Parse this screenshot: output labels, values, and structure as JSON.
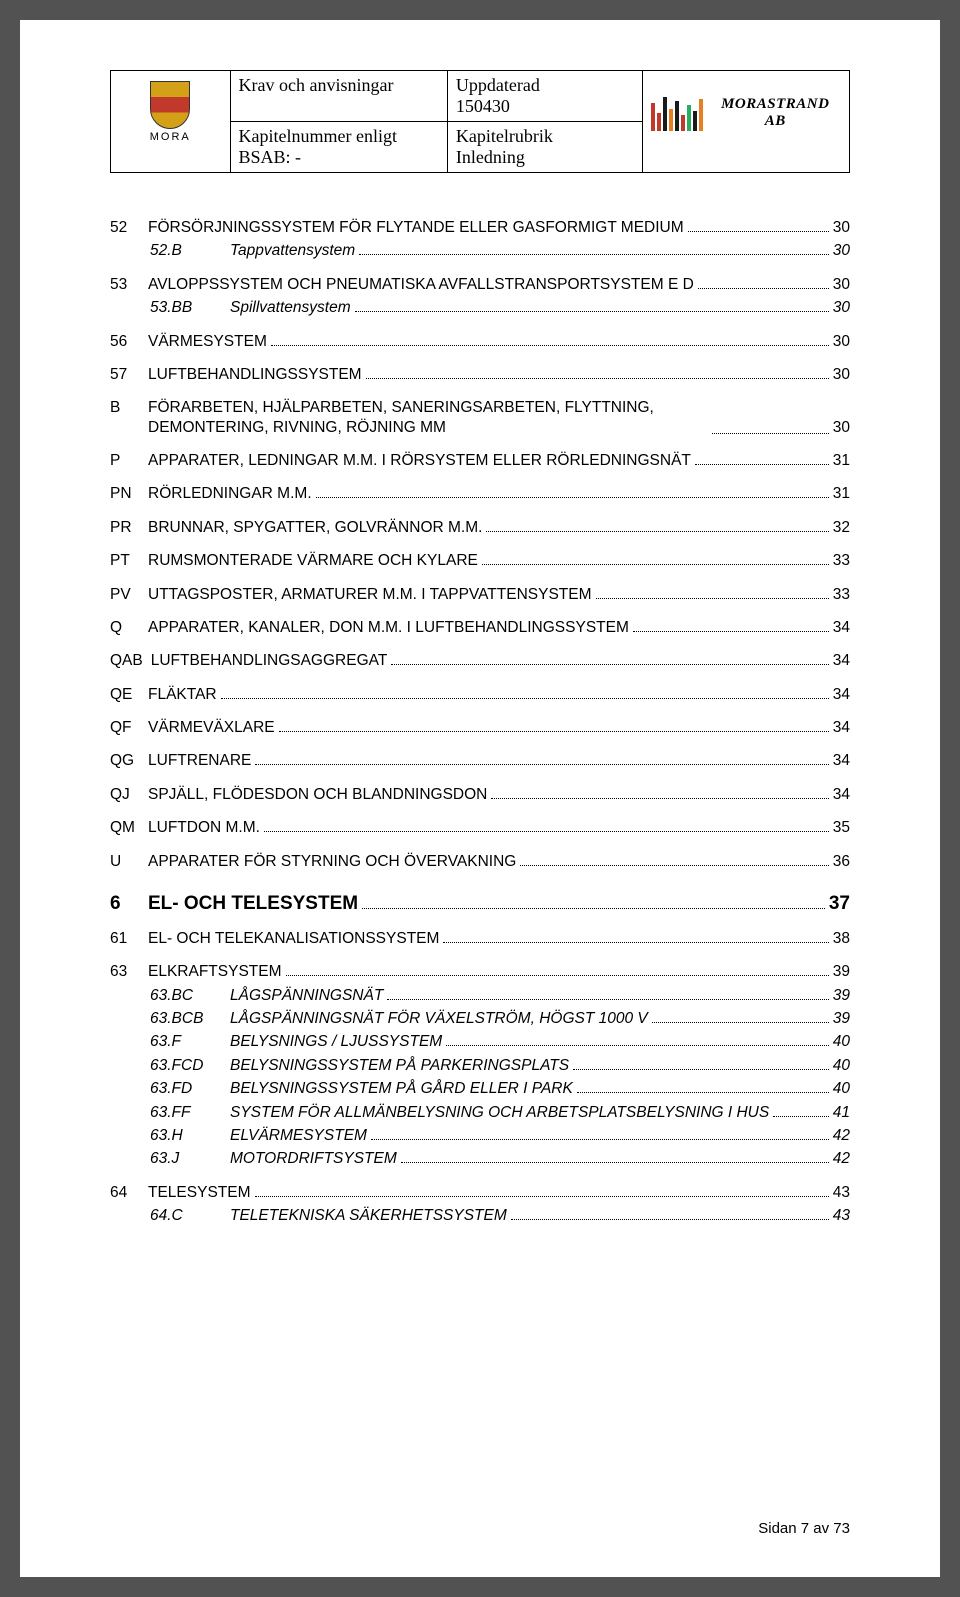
{
  "header": {
    "cell_a1": "Krav och anvisningar",
    "cell_b1": "Uppdaterad\n150430",
    "cell_a2": "Kapitelnummer enligt BSAB: -",
    "cell_b2": "Kapitelrubrik\nInledning",
    "mora_label": "MORA",
    "strand_label": "MORASTRAND AB",
    "strand_colors": [
      "#c0392b",
      "#c0392b",
      "#1a1a1a",
      "#e67e22",
      "#1a1a1a",
      "#c0392b",
      "#27ae60",
      "#1a1a1a",
      "#e67e22"
    ],
    "strand_heights": [
      28,
      18,
      34,
      22,
      30,
      16,
      26,
      20,
      32
    ]
  },
  "toc": [
    {
      "code": "52",
      "label": "FÖRSÖRJNINGSSYSTEM FÖR FLYTANDE ELLER GASFORMIGT MEDIUM",
      "page": "30",
      "gap": false
    },
    {
      "code": "52.B",
      "label": "Tappvattensystem",
      "page": "30",
      "indent": 1,
      "italic": true
    },
    {
      "code": "53",
      "label": "AVLOPPSSYSTEM OCH PNEUMATISKA AVFALLSTRANSPORTSYSTEM E D",
      "page": "30",
      "gap": true
    },
    {
      "code": "53.BB",
      "label": "Spillvattensystem",
      "page": "30",
      "indent": 1,
      "italic": true
    },
    {
      "code": "56",
      "label": "VÄRMESYSTEM",
      "page": "30",
      "gap": true
    },
    {
      "code": "57",
      "label": "LUFTBEHANDLINGSSYSTEM",
      "page": "30",
      "gap": true
    },
    {
      "code": "B",
      "label": "FÖRARBETEN, HJÄLPARBETEN, SANERINGSARBETEN, FLYTTNING, DEMONTERING, RIVNING, RÖJNING MM",
      "page": "30",
      "gap": true,
      "wrap": true
    },
    {
      "code": "P",
      "label": "APPARATER, LEDNINGAR M.M. I RÖRSYSTEM ELLER RÖRLEDNINGSNÄT",
      "page": "31",
      "gap": true
    },
    {
      "code": "PN",
      "label": "RÖRLEDNINGAR M.M.",
      "page": "31",
      "gap": true
    },
    {
      "code": "PR",
      "label": "BRUNNAR, SPYGATTER, GOLVRÄNNOR M.M.",
      "page": "32",
      "gap": true
    },
    {
      "code": "PT",
      "label": "RUMSMONTERADE VÄRMARE OCH KYLARE",
      "page": "33",
      "gap": true
    },
    {
      "code": "PV",
      "label": "UTTAGSPOSTER, ARMATURER M.M. I TAPPVATTENSYSTEM",
      "page": "33",
      "gap": true
    },
    {
      "code": "Q",
      "label": "APPARATER, KANALER, DON M.M. I LUFTBEHANDLINGSSYSTEM",
      "page": "34",
      "gap": true
    },
    {
      "code": "QAB",
      "label": "LUFTBEHANDLINGSAGGREGAT",
      "page": "34",
      "gap": true
    },
    {
      "code": "QE",
      "label": "FLÄKTAR",
      "page": "34",
      "gap": true
    },
    {
      "code": "QF",
      "label": "VÄRMEVÄXLARE",
      "page": "34",
      "gap": true
    },
    {
      "code": "QG",
      "label": "LUFTRENARE",
      "page": "34",
      "gap": true
    },
    {
      "code": "QJ",
      "label": "SPJÄLL, FLÖDESDON OCH BLANDNINGSDON",
      "page": "34",
      "gap": true
    },
    {
      "code": "QM",
      "label": "LUFTDON M.M.",
      "page": "35",
      "gap": true
    },
    {
      "code": "U",
      "label": "APPARATER FÖR STYRNING OCH ÖVERVAKNING",
      "page": "36",
      "gap": true
    }
  ],
  "section6": {
    "code": "6",
    "label": "EL- OCH TELESYSTEM",
    "page": "37"
  },
  "toc2": [
    {
      "code": "61",
      "label": "EL- OCH TELEKANALISATIONSSYSTEM",
      "page": "38",
      "gap": true
    },
    {
      "code": "63",
      "label": "ELKRAFTSYSTEM",
      "page": "39",
      "gap": true
    },
    {
      "code": "63.BC",
      "label": "LÅGSPÄNNINGSNÄT",
      "page": "39",
      "indent": 2,
      "italic": true
    },
    {
      "code": "63.BCB",
      "label": "LÅGSPÄNNINGSNÄT FÖR VÄXELSTRÖM, HÖGST 1000 V",
      "page": "39",
      "indent": 2,
      "italic": true
    },
    {
      "code": "63.F",
      "label": "BELYSNINGS / LJUSSYSTEM",
      "page": "40",
      "indent": 2,
      "italic": true
    },
    {
      "code": "63.FCD",
      "label": "BELYSNINGSSYSTEM PÅ PARKERINGSPLATS",
      "page": "40",
      "indent": 2,
      "italic": true
    },
    {
      "code": "63.FD",
      "label": "BELYSNINGSSYSTEM PÅ GÅRD ELLER I PARK",
      "page": "40",
      "indent": 2,
      "italic": true
    },
    {
      "code": "63.FF",
      "label": "SYSTEM FÖR ALLMÄNBELYSNING OCH ARBETSPLATSBELYSNING I HUS",
      "page": "41",
      "indent": 2,
      "italic": true
    },
    {
      "code": "63.H",
      "label": "ELVÄRMESYSTEM",
      "page": "42",
      "indent": 2,
      "italic": true
    },
    {
      "code": "63.J",
      "label": "MOTORDRIFTSYSTEM",
      "page": "42",
      "indent": 2,
      "italic": true
    },
    {
      "code": "64",
      "label": "TELESYSTEM",
      "page": "43",
      "gap": true
    },
    {
      "code": "64.C",
      "label": "TELETEKNISKA SÄKERHETSSYSTEM",
      "page": "43",
      "indent": 2,
      "italic": true
    }
  ],
  "footer": "Sidan 7 av 73"
}
